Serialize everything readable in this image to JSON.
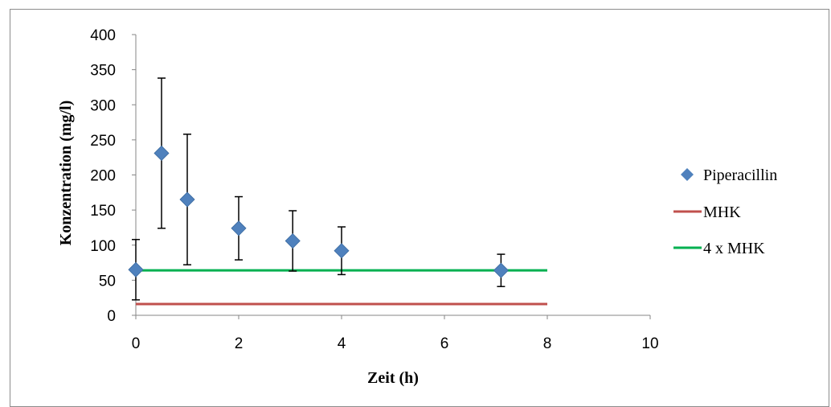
{
  "chart_data": {
    "type": "scatter",
    "xlabel": "Zeit (h)",
    "ylabel": "Konzentration (mg/l)",
    "xlim": [
      0,
      10
    ],
    "ylim": [
      0,
      400
    ],
    "x_ticks": [
      0,
      2,
      4,
      6,
      8,
      10
    ],
    "y_ticks": [
      0,
      50,
      100,
      150,
      200,
      250,
      300,
      350,
      400
    ],
    "grid": false,
    "legend_position": "right",
    "series": [
      {
        "name": "Piperacillin",
        "kind": "scatter",
        "marker": "diamond",
        "color": "#4F81BD",
        "x": [
          0,
          0.5,
          1,
          2,
          3.05,
          4,
          7.1
        ],
        "y": [
          65,
          231,
          165,
          124,
          106,
          92,
          64
        ],
        "error": [
          43,
          107,
          93,
          45,
          43,
          34,
          23
        ]
      },
      {
        "name": "MHK",
        "kind": "line",
        "color": "#C0504D",
        "x": [
          0,
          8
        ],
        "y": [
          16,
          16
        ]
      },
      {
        "name": "4 x MHK",
        "kind": "line",
        "color": "#00B050",
        "x": [
          0,
          8
        ],
        "y": [
          64,
          64
        ]
      }
    ]
  }
}
